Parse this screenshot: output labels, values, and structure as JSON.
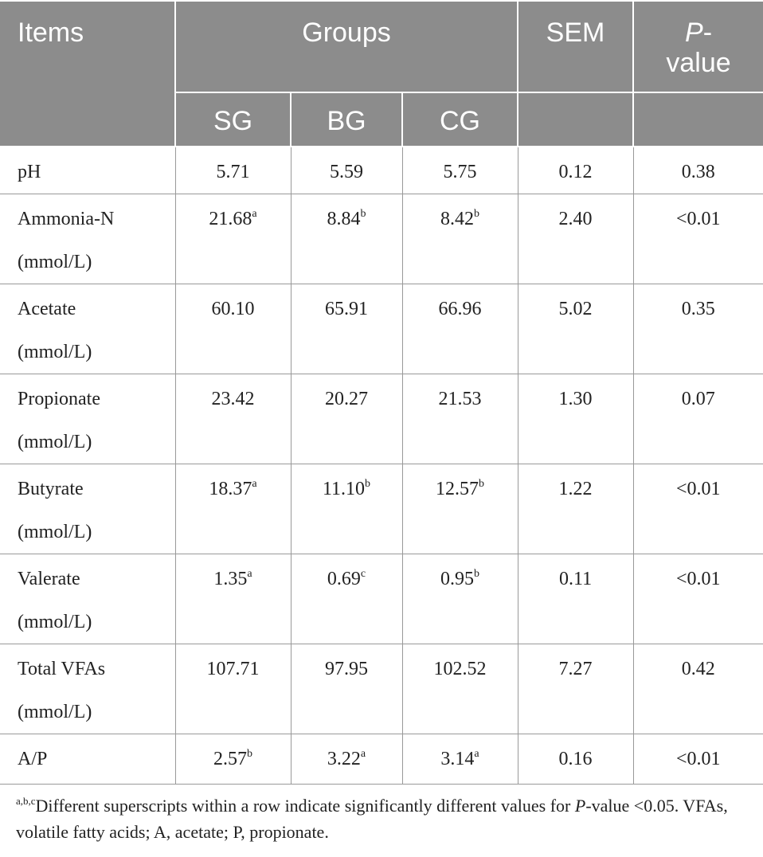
{
  "table": {
    "header": {
      "items": "Items",
      "groups": "Groups",
      "sem": "SEM",
      "p_value": {
        "italic": "P",
        "rest": "-value"
      }
    },
    "groups": [
      "SG",
      "BG",
      "CG"
    ],
    "rows": [
      {
        "item": [
          "pH"
        ],
        "values": [
          {
            "v": "5.71"
          },
          {
            "v": "5.59"
          },
          {
            "v": "5.75"
          }
        ],
        "sem": "0.12",
        "p": "0.38"
      },
      {
        "item": [
          "Ammonia-N",
          "(mmol/L)"
        ],
        "values": [
          {
            "v": "21.68",
            "sup": "a"
          },
          {
            "v": "8.84",
            "sup": "b"
          },
          {
            "v": "8.42",
            "sup": "b"
          }
        ],
        "sem": "2.40",
        "p": "<0.01"
      },
      {
        "item": [
          "Acetate",
          "(mmol/L)"
        ],
        "values": [
          {
            "v": "60.10"
          },
          {
            "v": "65.91"
          },
          {
            "v": "66.96"
          }
        ],
        "sem": "5.02",
        "p": "0.35"
      },
      {
        "item": [
          "Propionate",
          "(mmol/L)"
        ],
        "values": [
          {
            "v": "23.42"
          },
          {
            "v": "20.27"
          },
          {
            "v": "21.53"
          }
        ],
        "sem": "1.30",
        "p": "0.07"
      },
      {
        "item": [
          "Butyrate",
          "(mmol/L)"
        ],
        "values": [
          {
            "v": "18.37",
            "sup": "a"
          },
          {
            "v": "11.10",
            "sup": "b"
          },
          {
            "v": "12.57",
            "sup": "b"
          }
        ],
        "sem": "1.22",
        "p": "<0.01"
      },
      {
        "item": [
          "Valerate",
          "(mmol/L)"
        ],
        "values": [
          {
            "v": "1.35",
            "sup": "a"
          },
          {
            "v": "0.69",
            "sup": "c"
          },
          {
            "v": "0.95",
            "sup": "b"
          }
        ],
        "sem": "0.11",
        "p": "<0.01"
      },
      {
        "item": [
          "Total VFAs",
          "(mmol/L)"
        ],
        "values": [
          {
            "v": "107.71"
          },
          {
            "v": "97.95"
          },
          {
            "v": "102.52"
          }
        ],
        "sem": "7.27",
        "p": "0.42"
      },
      {
        "item": [
          "A/P"
        ],
        "values": [
          {
            "v": "2.57",
            "sup": "b"
          },
          {
            "v": "3.22",
            "sup": "a"
          },
          {
            "v": "3.14",
            "sup": "a"
          }
        ],
        "sem": "0.16",
        "p": "<0.01"
      }
    ]
  },
  "footnote": {
    "sup": "a,b,c",
    "text1": "Different superscripts within a row indicate significantly different values for ",
    "italic": "P",
    "text2": "-value <0.05. VFAs, volatile fatty acids; A, acetate; P, propionate."
  }
}
